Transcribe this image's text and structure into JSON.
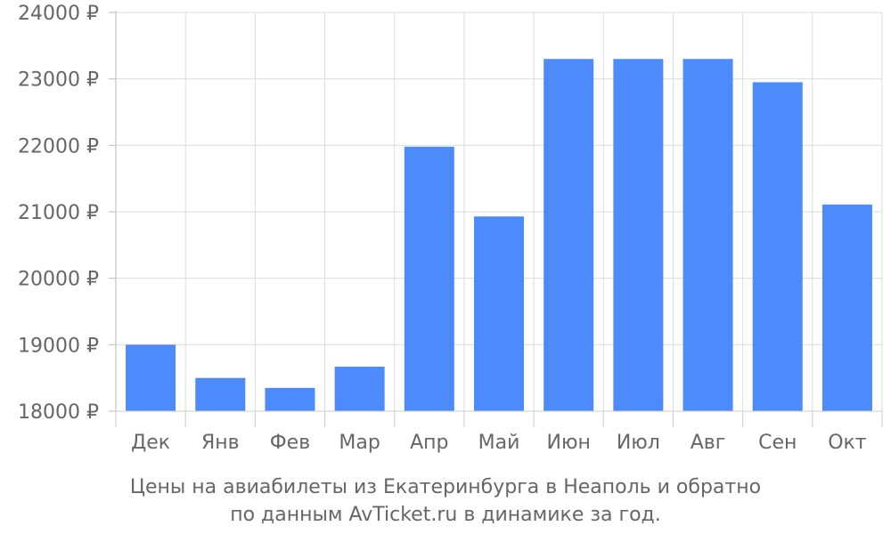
{
  "chart_data": {
    "type": "bar",
    "categories": [
      "Дек",
      "Янв",
      "Фев",
      "Мар",
      "Апр",
      "Май",
      "Июн",
      "Июл",
      "Авг",
      "Сен",
      "Окт"
    ],
    "values": [
      19000,
      18500,
      18350,
      18670,
      21980,
      20930,
      23300,
      23300,
      23300,
      22950,
      21110
    ],
    "ylim": [
      18000,
      24000
    ],
    "yticks": [
      18000,
      19000,
      20000,
      21000,
      22000,
      23000,
      24000
    ],
    "ytick_labels": [
      "18000 ₽",
      "19000 ₽",
      "20000 ₽",
      "21000 ₽",
      "22000 ₽",
      "23000 ₽",
      "24000 ₽"
    ],
    "caption_line1": "Цены на авиабилеты из Екатеринбурга в Неаполь и обратно",
    "caption_line2": "по данным AvTicket.ru в динамике за год.",
    "bar_color": "#4d8afc",
    "grid": true,
    "grid_color": "#dddddd",
    "text_color": "#666666"
  }
}
